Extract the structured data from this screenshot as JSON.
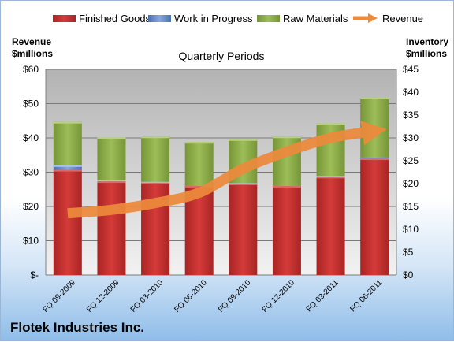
{
  "chart_data": {
    "type": "bar",
    "title": "Quarterly Periods",
    "company": "Flotek Industries Inc.",
    "categories": [
      "FQ 09-2009",
      "FQ 12-2009",
      "FQ 03-2010",
      "FQ 06-2010",
      "FQ 09-2010",
      "FQ 12-2010",
      "FQ 03-2011",
      "FQ 06-2011"
    ],
    "stacked": true,
    "series": [
      {
        "name": "Finished Goods",
        "axis": "right",
        "color": "#c0302f",
        "values": [
          23.0,
          20.5,
          20.2,
          19.5,
          20.0,
          19.5,
          21.5,
          25.5
        ]
      },
      {
        "name": "Work in Progress",
        "axis": "right",
        "color": "#5e86c8",
        "values": [
          1.0,
          0.2,
          0.2,
          0.0,
          0.1,
          0.0,
          0.2,
          0.2
        ]
      },
      {
        "name": "Raw Materials",
        "axis": "right",
        "color": "#8cad4a",
        "values": [
          9.5,
          9.4,
          9.9,
          9.6,
          9.6,
          10.8,
          11.5,
          13.1
        ]
      },
      {
        "name": "Revenue",
        "axis": "left",
        "type": "line",
        "color": "#ed8a3c",
        "values": [
          18,
          19,
          21,
          24,
          31,
          36,
          40,
          42
        ]
      }
    ],
    "y_left": {
      "label_line1": "Revenue",
      "label_line2": "$millions",
      "ticks": [
        "$-",
        "$10",
        "$20",
        "$30",
        "$40",
        "$50",
        "$60"
      ],
      "ylim": [
        0,
        60
      ]
    },
    "y_right": {
      "label_line1": "Inventory",
      "label_line2": "$millions",
      "ticks": [
        "$0",
        "$5",
        "$10",
        "$15",
        "$20",
        "$25",
        "$30",
        "$35",
        "$40",
        "$45"
      ],
      "ylim": [
        0,
        45
      ]
    },
    "grid": true,
    "legend_position": "top"
  }
}
